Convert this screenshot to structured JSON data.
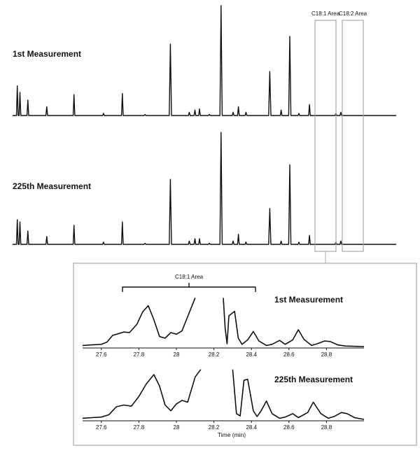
{
  "chart_data": [
    {
      "type": "line",
      "panel": "overview",
      "traces": [
        {
          "label": "1st Measurement",
          "peaks": [
            [
              0.5,
              0.27
            ],
            [
              1.2,
              0.21
            ],
            [
              3.3,
              0.14
            ],
            [
              8.3,
              0.08
            ],
            [
              15.5,
              0.19
            ],
            [
              23.3,
              0.02
            ],
            [
              28.3,
              0.2
            ],
            [
              34.3,
              0.01
            ],
            [
              41,
              0.65
            ],
            [
              46,
              0.03
            ],
            [
              47.5,
              0.05
            ],
            [
              48.7,
              0.06
            ],
            [
              51.3,
              0.01
            ],
            [
              54.4,
              1.0
            ],
            [
              57.6,
              0.03
            ],
            [
              59,
              0.08
            ],
            [
              61,
              0.03
            ],
            [
              67.3,
              0.4
            ],
            [
              70.3,
              0.05
            ],
            [
              72.6,
              0.72
            ],
            [
              75,
              0.02
            ],
            [
              77.8,
              0.1
            ],
            [
              84.8,
              0.02
            ],
            [
              86.1,
              0.03
            ]
          ]
        },
        {
          "label": "225th Measurement",
          "peaks": [
            [
              0.5,
              0.22
            ],
            [
              1.2,
              0.2
            ],
            [
              3.3,
              0.12
            ],
            [
              8.3,
              0.07
            ],
            [
              15.5,
              0.17
            ],
            [
              23.3,
              0.02
            ],
            [
              28.3,
              0.2
            ],
            [
              34.3,
              0.01
            ],
            [
              41,
              0.58
            ],
            [
              46,
              0.03
            ],
            [
              47.5,
              0.05
            ],
            [
              48.7,
              0.05
            ],
            [
              51.3,
              0.01
            ],
            [
              54.4,
              1.0
            ],
            [
              57.6,
              0.03
            ],
            [
              59,
              0.09
            ],
            [
              61,
              0.02
            ],
            [
              67.3,
              0.32
            ],
            [
              70.3,
              0.03
            ],
            [
              72.6,
              0.71
            ],
            [
              75,
              0.02
            ],
            [
              77.8,
              0.08
            ],
            [
              84.8,
              0.02
            ],
            [
              86.1,
              0.03
            ]
          ]
        }
      ],
      "regions": [
        {
          "label": "C18:1 Area"
        },
        {
          "label": "C18:2 Area"
        }
      ]
    },
    {
      "type": "line",
      "panel": "zoom",
      "xlabel": "Time (min)",
      "xlim": [
        27.5,
        29.0
      ],
      "xticks": [
        "27.6",
        "27.8",
        "28",
        "28.2",
        "28.4",
        "28.6",
        "28.8"
      ],
      "bracket_label": "C18:1 Area",
      "traces": [
        {
          "label": "1st Measurement",
          "points": [
            [
              27.5,
              0.02
            ],
            [
              27.55,
              0.03
            ],
            [
              27.6,
              0.04
            ],
            [
              27.63,
              0.08
            ],
            [
              27.66,
              0.2
            ],
            [
              27.7,
              0.24
            ],
            [
              27.72,
              0.26
            ],
            [
              27.75,
              0.25
            ],
            [
              27.79,
              0.4
            ],
            [
              27.82,
              0.62
            ],
            [
              27.85,
              0.73
            ],
            [
              27.88,
              0.48
            ],
            [
              27.91,
              0.18
            ],
            [
              27.94,
              0.15
            ],
            [
              27.97,
              0.25
            ],
            [
              28.0,
              0.22
            ],
            [
              28.03,
              0.28
            ],
            [
              28.07,
              0.62
            ],
            [
              28.1,
              0.87
            ],
            [
              28.1,
              null
            ],
            [
              28.25,
              null
            ],
            [
              28.25,
              0.87
            ],
            [
              28.26,
              0.32
            ],
            [
              28.27,
              0.05
            ],
            [
              28.28,
              0.55
            ],
            [
              28.31,
              0.63
            ],
            [
              28.33,
              0.15
            ],
            [
              28.35,
              0.04
            ],
            [
              28.38,
              0.12
            ],
            [
              28.41,
              0.27
            ],
            [
              28.44,
              0.1
            ],
            [
              28.48,
              0.02
            ],
            [
              28.51,
              0.04
            ],
            [
              28.55,
              0.11
            ],
            [
              28.58,
              0.04
            ],
            [
              28.62,
              0.12
            ],
            [
              28.65,
              0.3
            ],
            [
              28.68,
              0.13
            ],
            [
              28.72,
              0.02
            ],
            [
              28.75,
              0.05
            ],
            [
              28.79,
              0.1
            ],
            [
              28.82,
              0.09
            ],
            [
              28.86,
              0.03
            ],
            [
              28.9,
              0.01
            ],
            [
              29.0,
              0.0
            ]
          ]
        },
        {
          "label": "225th Measurement",
          "points": [
            [
              27.5,
              0.02
            ],
            [
              27.55,
              0.03
            ],
            [
              27.6,
              0.04
            ],
            [
              27.64,
              0.08
            ],
            [
              27.68,
              0.22
            ],
            [
              27.72,
              0.25
            ],
            [
              27.76,
              0.23
            ],
            [
              27.8,
              0.4
            ],
            [
              27.84,
              0.62
            ],
            [
              27.88,
              0.78
            ],
            [
              27.91,
              0.58
            ],
            [
              27.94,
              0.25
            ],
            [
              27.97,
              0.15
            ],
            [
              28.0,
              0.27
            ],
            [
              28.03,
              0.33
            ],
            [
              28.06,
              0.3
            ],
            [
              28.1,
              0.74
            ],
            [
              28.13,
              0.87
            ],
            [
              28.13,
              null
            ],
            [
              28.3,
              null
            ],
            [
              28.3,
              0.87
            ],
            [
              28.32,
              0.1
            ],
            [
              28.34,
              0.06
            ],
            [
              28.36,
              0.68
            ],
            [
              28.38,
              0.7
            ],
            [
              28.41,
              0.15
            ],
            [
              28.43,
              0.05
            ],
            [
              28.45,
              0.14
            ],
            [
              28.48,
              0.32
            ],
            [
              28.51,
              0.1
            ],
            [
              28.55,
              0.02
            ],
            [
              28.58,
              0.04
            ],
            [
              28.62,
              0.1
            ],
            [
              28.65,
              0.03
            ],
            [
              28.7,
              0.12
            ],
            [
              28.73,
              0.3
            ],
            [
              28.77,
              0.1
            ],
            [
              28.81,
              0.02
            ],
            [
              28.84,
              0.05
            ],
            [
              28.88,
              0.12
            ],
            [
              28.91,
              0.1
            ],
            [
              28.95,
              0.03
            ],
            [
              29.0,
              0.0
            ]
          ]
        }
      ]
    }
  ]
}
